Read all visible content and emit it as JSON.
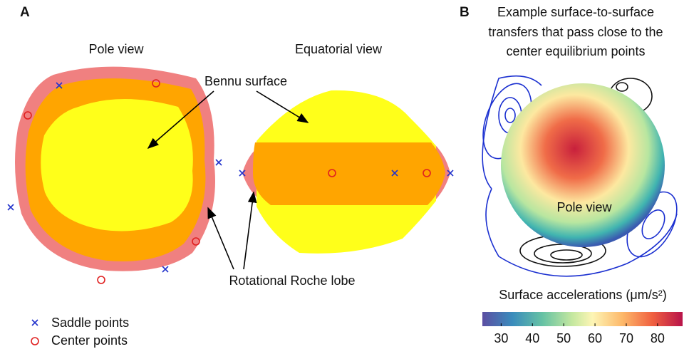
{
  "panel_a": {
    "label": "A",
    "pole_view": "Pole view",
    "equatorial_view": "Equatorial view",
    "surface_label": "Bennu surface",
    "roche_label": "Rotational Roche lobe",
    "legend": [
      "Saddle points",
      "Center points"
    ]
  },
  "panel_b": {
    "label": "B",
    "title": [
      "Example surface-to-surface",
      "transfers that pass close to the",
      "center equilibrium points"
    ],
    "pole_view": "Pole view",
    "colorbar": {
      "label": "Surface accelerations (μm/s²)",
      "lim": [
        24,
        88
      ],
      "ticks": [
        30,
        40,
        50,
        60,
        70,
        80
      ]
    }
  }
}
